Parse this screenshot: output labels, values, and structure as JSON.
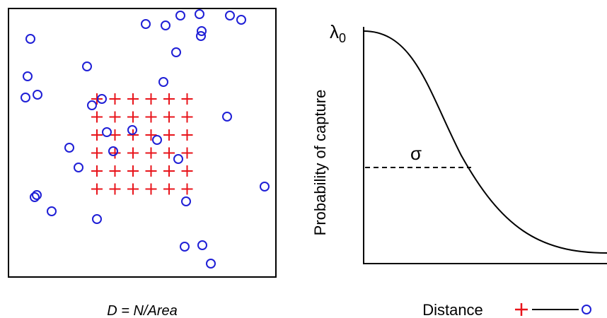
{
  "left_panel": {
    "caption": "D = N/Area",
    "trap_color": "#e8141b",
    "activity_center_color": "#1f1fd6",
    "trap_grid": {
      "rows": 6,
      "cols": 6
    },
    "activity_centers": [
      [
        43,
        55
      ],
      [
        39,
        108
      ],
      [
        36,
        138
      ],
      [
        53,
        134
      ],
      [
        123,
        94
      ],
      [
        130,
        149
      ],
      [
        144,
        140
      ],
      [
        206,
        34
      ],
      [
        234,
        36
      ],
      [
        255,
        22
      ],
      [
        282,
        20
      ],
      [
        325,
        22
      ],
      [
        341,
        28
      ],
      [
        285,
        44
      ],
      [
        284,
        51
      ],
      [
        249,
        74
      ],
      [
        231,
        116
      ],
      [
        321,
        165
      ],
      [
        151,
        187
      ],
      [
        187,
        184
      ],
      [
        222,
        198
      ],
      [
        98,
        209
      ],
      [
        160,
        214
      ],
      [
        252,
        225
      ],
      [
        111,
        237
      ],
      [
        374,
        264
      ],
      [
        52,
        276
      ],
      [
        49,
        279
      ],
      [
        263,
        285
      ],
      [
        73,
        299
      ],
      [
        137,
        310
      ],
      [
        261,
        349
      ],
      [
        286,
        347
      ],
      [
        298,
        373
      ]
    ]
  },
  "right_panel": {
    "y_axis_label": "Probability of capture",
    "x_axis_label": "Distance",
    "lambda_label": "λ",
    "lambda_subscript": "0",
    "sigma_label": "σ",
    "curve_color": "#000000",
    "legend_trap_color": "#e8141b",
    "legend_center_color": "#1f1fd6"
  }
}
